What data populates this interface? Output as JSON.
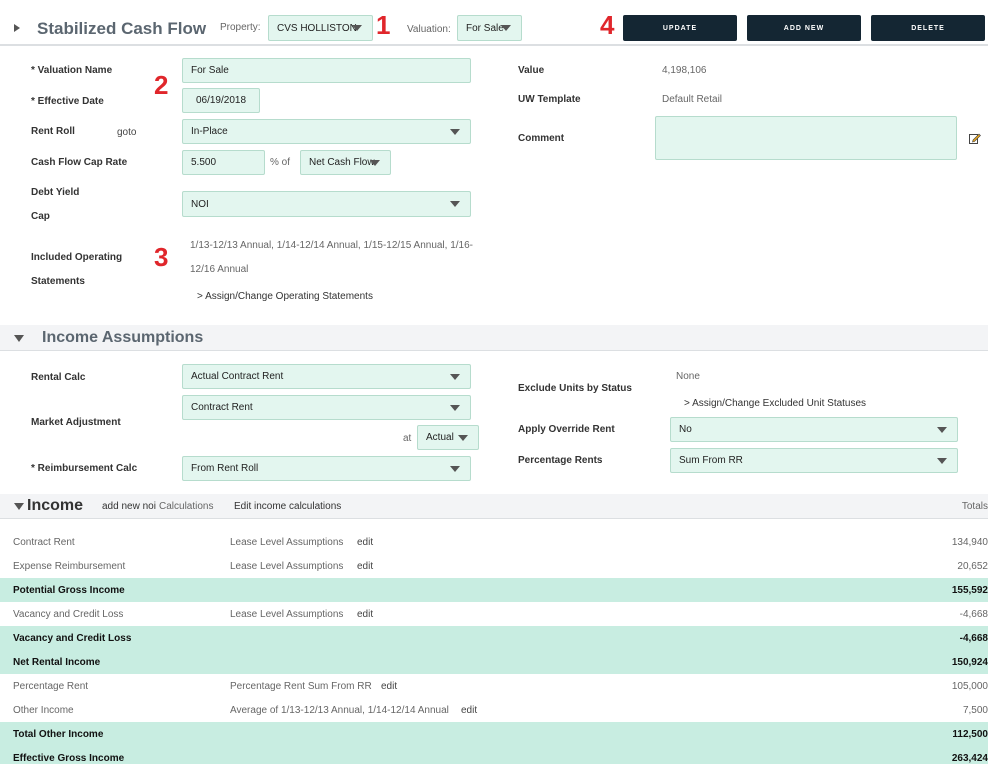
{
  "header": {
    "title": "Stabilized Cash Flow",
    "property_label": "Property:",
    "property_value": "CVS HOLLISTON",
    "valuation_label": "Valuation:",
    "valuation_value": "For Sale",
    "buttons": {
      "update": "UPDATE",
      "add_new": "ADD NEW",
      "delete": "DELETE"
    }
  },
  "markers": {
    "m1": "1",
    "m2": "2",
    "m3": "3",
    "m4": "4"
  },
  "valuation": {
    "name_label": "* Valuation Name",
    "name_value": "For Sale",
    "date_label": "* Effective Date",
    "date_value": "06/19/2018",
    "rent_roll_label": "Rent Roll",
    "goto": "goto",
    "rent_roll_value": "In-Place",
    "cap_rate_label": "Cash Flow Cap Rate",
    "cap_rate_value": "5.500",
    "pct_of": "% of",
    "cap_basis": "Net Cash Flow",
    "debt_yield_label_1": "Debt Yield",
    "debt_yield_label_2": "Cap",
    "debt_yield_value": "NOI",
    "op_label_1": "Included Operating",
    "op_label_2": "Statements",
    "op_value_1": "1/13-12/13 Annual, 1/14-12/14 Annual, 1/15-12/15 Annual, 1/16-",
    "op_value_2": "12/16 Annual",
    "op_link": "> Assign/Change Operating Statements",
    "value_label": "Value",
    "value_value": "4,198,106",
    "uw_label": "UW Template",
    "uw_value": "Default Retail",
    "comment_label": "Comment",
    "comment_value": ""
  },
  "income_assumptions": {
    "title": "Income Assumptions",
    "rental_calc_label": "Rental Calc",
    "rental_calc_value": "Actual Contract Rent",
    "market_adj_label": "Market Adjustment",
    "market_adj_value": "Contract Rent",
    "at": "at",
    "at_value": "Actual",
    "reimb_label": "* Reimbursement Calc",
    "reimb_value": "From Rent Roll",
    "exclude_label": "Exclude Units by Status",
    "exclude_value": "None",
    "exclude_link": "> Assign/Change Excluded Unit Statuses",
    "override_label": "Apply Override Rent",
    "override_value": "No",
    "pct_rents_label": "Percentage Rents",
    "pct_rents_value": "Sum From RR"
  },
  "income": {
    "title": "Income",
    "add_new_noi": "add new noi",
    "calculations": "Calculations",
    "edit_calcs": "Edit income calculations",
    "totals": "Totals",
    "rows": [
      {
        "label": "Contract Rent",
        "basis": "Lease Level Assumptions",
        "edit": "edit",
        "total": "134,940"
      },
      {
        "label": "Expense Reimbursement",
        "basis": "Lease Level Assumptions",
        "edit": "edit",
        "total": "20,652"
      },
      {
        "label": "Potential Gross Income",
        "basis": "",
        "edit": "",
        "total": "155,592"
      },
      {
        "label": "Vacancy and Credit Loss",
        "basis": "Lease Level Assumptions",
        "edit": "edit",
        "total": "-4,668"
      },
      {
        "label": "Vacancy and Credit Loss",
        "basis": "",
        "edit": "",
        "total": "-4,668"
      },
      {
        "label": "Net Rental Income",
        "basis": "",
        "edit": "",
        "total": "150,924"
      },
      {
        "label": "Percentage Rent",
        "basis": "Percentage Rent Sum From RR",
        "edit": "edit",
        "total": "105,000"
      },
      {
        "label": "Other Income",
        "basis": "Average of 1/13-12/13 Annual, 1/14-12/14 Annual",
        "edit": "edit",
        "total": "7,500"
      },
      {
        "label": "Total Other Income",
        "basis": "",
        "edit": "",
        "total": "112,500"
      },
      {
        "label": "Effective Gross Income",
        "basis": "",
        "edit": "",
        "total": "263,424"
      }
    ]
  },
  "colors": {
    "accent_field": "#e3f6ef",
    "highlight_row": "#c8ede1",
    "button": "#142633",
    "marker": "#e0262b"
  },
  "icons": {
    "collapse": "triangle-right-icon",
    "expand": "triangle-down-icon",
    "edit_comment": "edit-note-icon"
  }
}
